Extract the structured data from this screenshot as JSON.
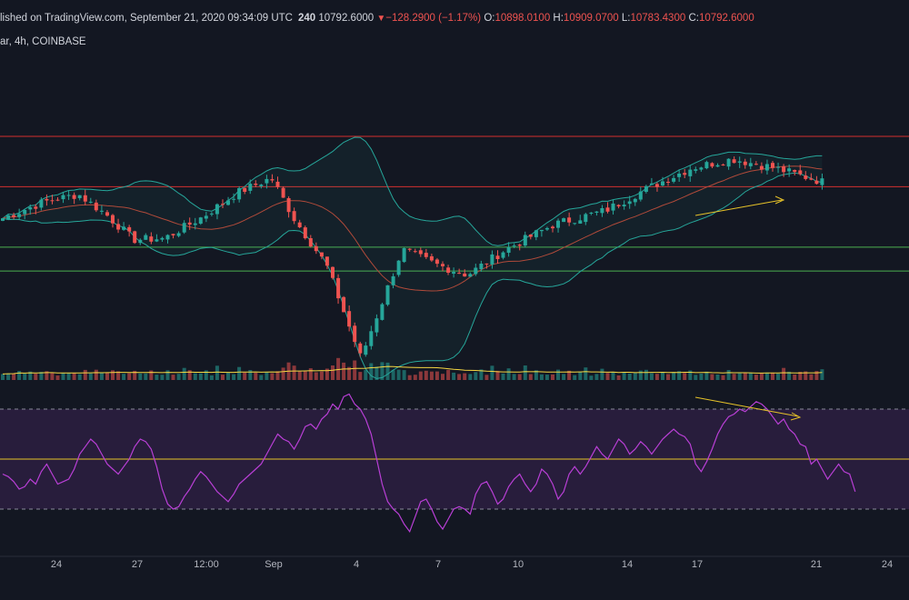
{
  "header": {
    "published": "lished on TradingView.com, September 21, 2020 09:34:09 UTC",
    "interval": "240",
    "last": "10792.6000",
    "change": "−128.2900 (−1.17%)",
    "ohlc": [
      {
        "label": "O:",
        "value": "10898.0100"
      },
      {
        "label": "H:",
        "value": "10909.0700"
      },
      {
        "label": "L:",
        "value": "10783.4300"
      },
      {
        "label": "C:",
        "value": "10792.6000"
      }
    ],
    "symbol_line": "ar, 4h, COINBASE"
  },
  "colors": {
    "background": "#131722",
    "up": "#26a69a",
    "down": "#ef5350",
    "bands": "#26a69a",
    "basis": "#b04a3a",
    "resistance": "#d32f2f",
    "support": "#4caf50",
    "volume_ma": "#f5d742",
    "rsi_line": "#b93fd6",
    "rsi_band": "#3a2352",
    "rsi_level": "#e6c229",
    "trendline": "#e6c229"
  },
  "chart_data": [
    {
      "type": "candlestick",
      "name": "price",
      "x_ticks": [
        "24",
        "27",
        "12:00",
        "Sep",
        "4",
        "7",
        "10",
        "14",
        "17",
        "21",
        "24"
      ],
      "candle_count": 150,
      "price_path": [
        [
          0,
          10400
        ],
        [
          12,
          10530
        ],
        [
          22,
          10590
        ],
        [
          30,
          10430
        ],
        [
          38,
          10230
        ],
        [
          47,
          10240
        ],
        [
          58,
          10410
        ],
        [
          68,
          10600
        ],
        [
          78,
          10720
        ],
        [
          85,
          10380
        ],
        [
          94,
          10030
        ],
        [
          104,
          9290
        ],
        [
          116,
          10150
        ],
        [
          126,
          10030
        ],
        [
          135,
          9950
        ],
        [
          146,
          10150
        ],
        [
          160,
          10350
        ],
        [
          175,
          10460
        ],
        [
          186,
          10620
        ],
        [
          200,
          10800
        ],
        [
          212,
          10870
        ],
        [
          224,
          10800
        ],
        [
          238,
          10690
        ]
      ],
      "horizontal_levels": [
        {
          "price": 10650,
          "color": "resistance"
        },
        {
          "price": 11050,
          "color": "resistance"
        },
        {
          "price": 10170,
          "color": "support"
        },
        {
          "price": 9980,
          "color": "support"
        }
      ],
      "volume_scale": 25
    },
    {
      "type": "line",
      "name": "rsi",
      "levels": [
        70,
        50,
        30
      ],
      "values": [
        44,
        43,
        41,
        38,
        39,
        42,
        40,
        45,
        48,
        44,
        40,
        41,
        42,
        46,
        52,
        55,
        58,
        56,
        52,
        48,
        46,
        44,
        47,
        50,
        55,
        58,
        57,
        54,
        47,
        38,
        32,
        30,
        31,
        35,
        38,
        42,
        45,
        43,
        40,
        37,
        35,
        33,
        36,
        40,
        42,
        44,
        46,
        48,
        52,
        56,
        60,
        58,
        57,
        54,
        58,
        63,
        64,
        62,
        66,
        68,
        72,
        70,
        75,
        76,
        72,
        70,
        66,
        60,
        50,
        40,
        33,
        30,
        28,
        24,
        21,
        27,
        33,
        34,
        30,
        25,
        22,
        26,
        30,
        31,
        30,
        28,
        36,
        40,
        41,
        37,
        32,
        34,
        39,
        42,
        44,
        40,
        37,
        40,
        46,
        44,
        40,
        34,
        37,
        44,
        47,
        44,
        47,
        51,
        55,
        52,
        50,
        54,
        58,
        56,
        52,
        54,
        57,
        55,
        52,
        55,
        58,
        60,
        62,
        60,
        59,
        56,
        48,
        45,
        49,
        54,
        60,
        64,
        67,
        68,
        70,
        69,
        71,
        73,
        72,
        70,
        67,
        64,
        66,
        62,
        60,
        56,
        55,
        48,
        50,
        46,
        42,
        45,
        48,
        45,
        44,
        37
      ]
    }
  ]
}
